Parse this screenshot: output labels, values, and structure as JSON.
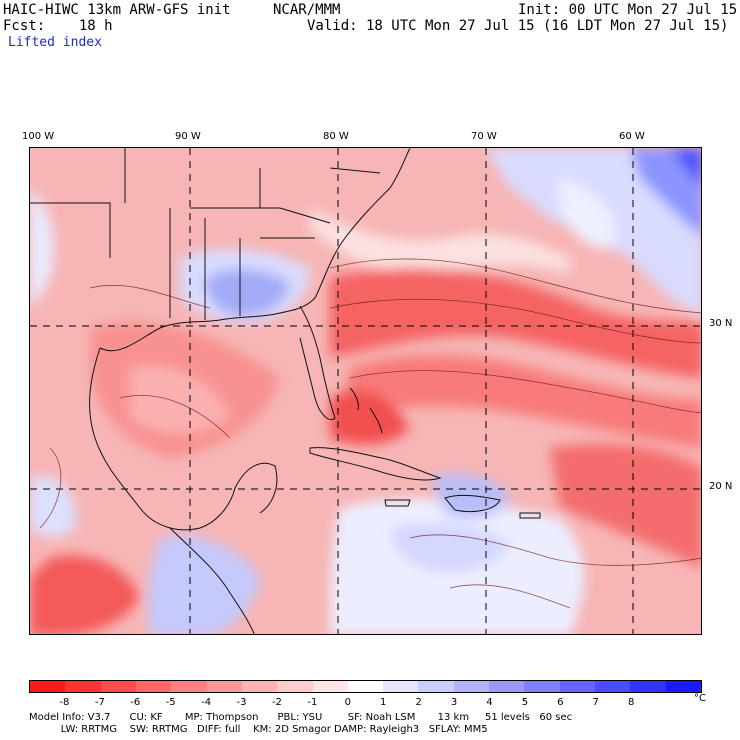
{
  "header": {
    "model": "HAIC-HIWC 13km ARW-GFS init",
    "org": "NCAR/MMM",
    "init": "Init: 00 UTC Mon 27 Jul 15",
    "fcst": "Fcst:    18 h",
    "valid": "Valid: 18 UTC Mon 27 Jul 15 (16 LDT Mon 27 Jul 15)",
    "field": "Lifted index"
  },
  "map": {
    "lon_labels": [
      "100 W",
      "90 W",
      "80 W",
      "70 W",
      "60 W"
    ],
    "lat_labels": [
      "30 N",
      "20 N"
    ],
    "grid_style": "dashed",
    "land_color": "#f6c4c4",
    "coast_color": "#000000"
  },
  "colorbar": {
    "labels": [
      "-8",
      "-7",
      "-6",
      "-5",
      "-4",
      "-3",
      "-2",
      "-1",
      "0",
      "1",
      "2",
      "3",
      "4",
      "5",
      "6",
      "7",
      "8"
    ],
    "unit": "°C",
    "colors": [
      "#ff1a1a",
      "#ff3333",
      "#ff4c4c",
      "#ff6666",
      "#ff8080",
      "#ff9999",
      "#ffb3b3",
      "#ffcccc",
      "#ffe6e6",
      "#ffffff",
      "#e6e6ff",
      "#ccccff",
      "#b3b3ff",
      "#9999ff",
      "#8080ff",
      "#6666ff",
      "#4c4cff",
      "#3333ff",
      "#1a1aff"
    ]
  },
  "footer": {
    "line1": "Model Info: V3.7      CU: KF       MP: Thompson      PBL: YSU        SF: Noah LSM       13 km     51 levels   60 sec",
    "line2": "          LW: RRTMG    SW: RRTMG   DIFF: full    KM: 2D Smagor DAMP: Rayleigh3   SFLAY: MM5"
  }
}
